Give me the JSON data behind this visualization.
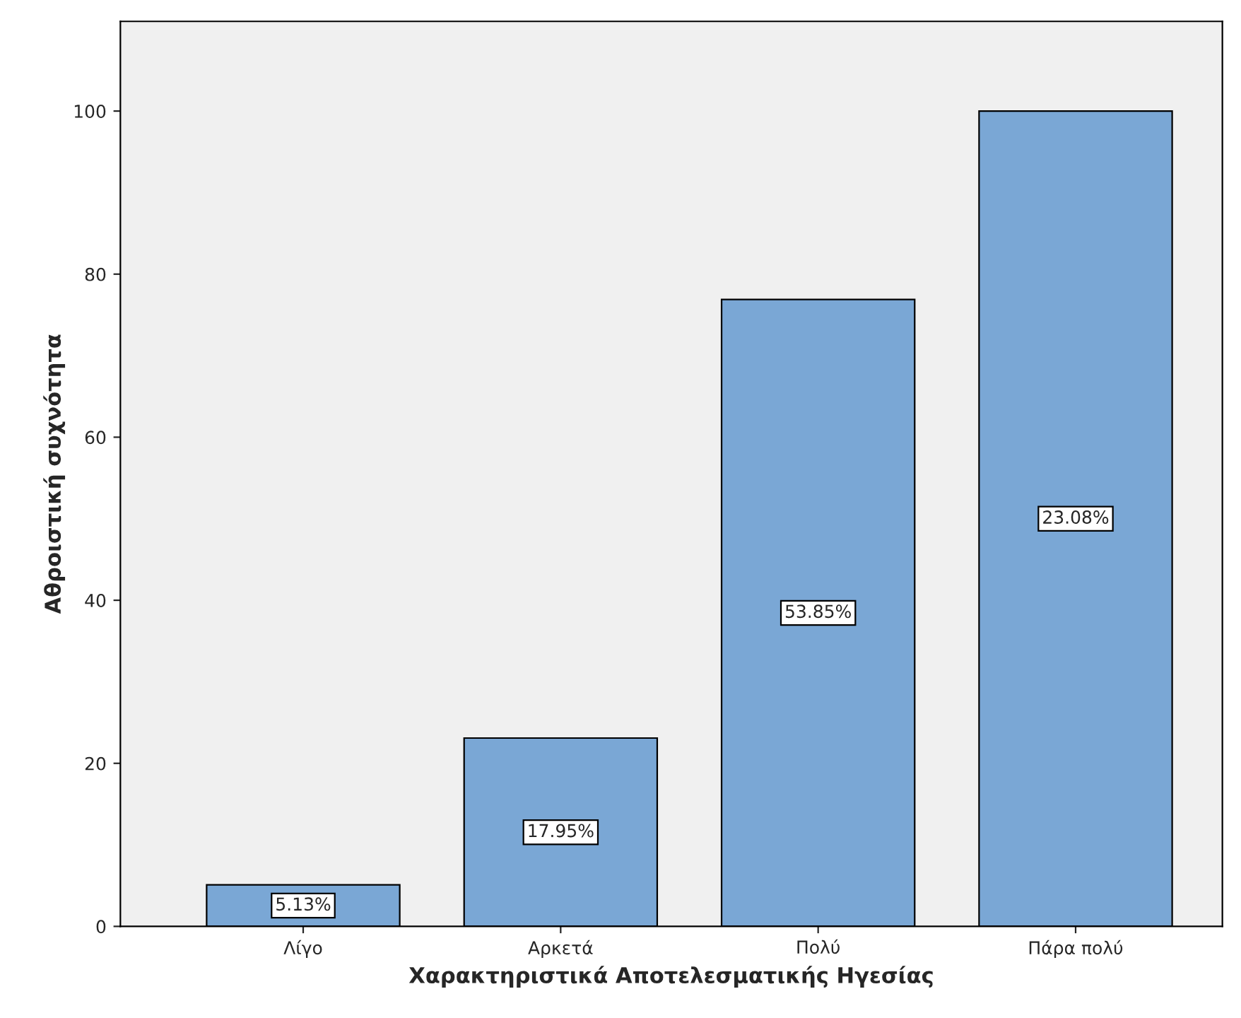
{
  "chart_data": {
    "type": "bar",
    "xlabel": "Χαρακτηριστικά Αποτελεσματικής Ηγεσίας",
    "ylabel": "Αθροιστική συχνότητα",
    "categories": [
      "Λίγο",
      "Αρκετά",
      "Πολύ",
      "Πάρα πολύ"
    ],
    "values": [
      5.1,
      23.1,
      76.9,
      100
    ],
    "annotations": [
      "5.13%",
      "17.95%",
      "53.85%",
      "23.08%"
    ],
    "color": "#7aa7d5",
    "ylim": [
      0,
      111
    ],
    "yticks": [
      0,
      20,
      40,
      60,
      80,
      100
    ],
    "grid": false,
    "legend": false
  }
}
